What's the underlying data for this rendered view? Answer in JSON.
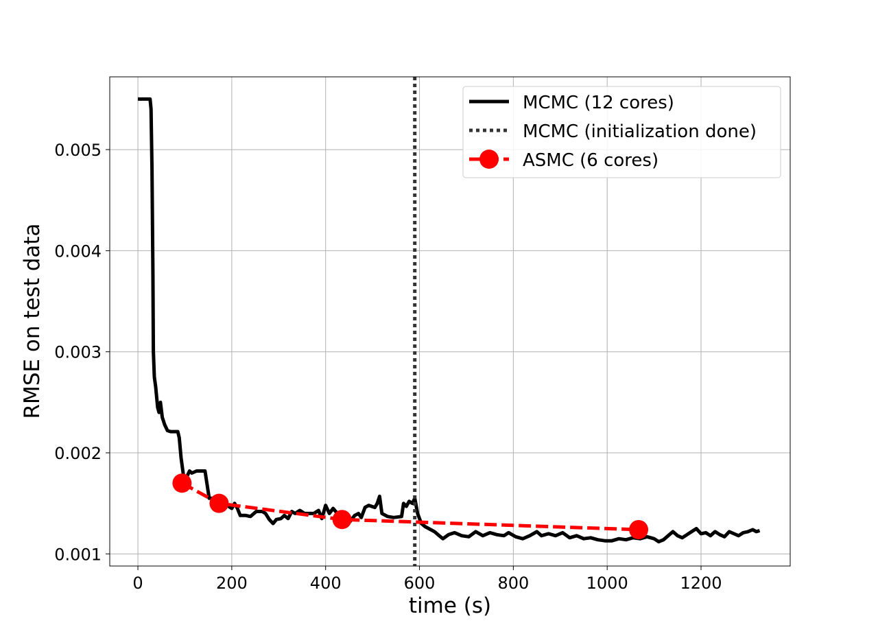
{
  "chart_data": {
    "type": "line",
    "title": "",
    "xlabel": "time (s)",
    "ylabel": "RMSE on test data",
    "xlim": [
      -60,
      1390
    ],
    "ylim": [
      0.00088,
      0.00572
    ],
    "xticks": [
      0,
      200,
      400,
      600,
      800,
      1000,
      1200
    ],
    "xtick_labels": [
      "0",
      "200",
      "400",
      "600",
      "800",
      "1000",
      "1200"
    ],
    "yticks": [
      0.001,
      0.002,
      0.003,
      0.004,
      0.005
    ],
    "ytick_labels": [
      "0.001",
      "0.002",
      "0.003",
      "0.004",
      "0.005"
    ],
    "grid": true,
    "legend_position": "top-right",
    "series": [
      {
        "name": "MCMC (12 cores)",
        "style": "solid",
        "color": "#000000",
        "points": [
          [
            0,
            0.0055
          ],
          [
            26,
            0.0055
          ],
          [
            28,
            0.0054
          ],
          [
            30,
            0.0048
          ],
          [
            32,
            0.0038
          ],
          [
            33,
            0.003
          ],
          [
            35,
            0.00275
          ],
          [
            38,
            0.00265
          ],
          [
            42,
            0.00245
          ],
          [
            45,
            0.0024
          ],
          [
            48,
            0.0025
          ],
          [
            52,
            0.00235
          ],
          [
            57,
            0.00228
          ],
          [
            63,
            0.00222
          ],
          [
            70,
            0.00221
          ],
          [
            85,
            0.00221
          ],
          [
            88,
            0.00215
          ],
          [
            92,
            0.00195
          ],
          [
            97,
            0.00178
          ],
          [
            103,
            0.00175
          ],
          [
            110,
            0.00182
          ],
          [
            115,
            0.0018
          ],
          [
            125,
            0.00182
          ],
          [
            143,
            0.00182
          ],
          [
            147,
            0.0017
          ],
          [
            152,
            0.00155
          ],
          [
            160,
            0.00155
          ],
          [
            170,
            0.00152
          ],
          [
            180,
            0.0015
          ],
          [
            190,
            0.00148
          ],
          [
            200,
            0.00145
          ],
          [
            206,
            0.0015
          ],
          [
            212,
            0.00145
          ],
          [
            218,
            0.00138
          ],
          [
            230,
            0.00138
          ],
          [
            240,
            0.00137
          ],
          [
            252,
            0.00142
          ],
          [
            265,
            0.00142
          ],
          [
            272,
            0.0014
          ],
          [
            280,
            0.00134
          ],
          [
            288,
            0.0013
          ],
          [
            295,
            0.00134
          ],
          [
            305,
            0.00135
          ],
          [
            312,
            0.00138
          ],
          [
            320,
            0.00135
          ],
          [
            328,
            0.00142
          ],
          [
            335,
            0.0014
          ],
          [
            345,
            0.00143
          ],
          [
            355,
            0.0014
          ],
          [
            375,
            0.0014
          ],
          [
            385,
            0.00143
          ],
          [
            392,
            0.00135
          ],
          [
            400,
            0.00148
          ],
          [
            408,
            0.0014
          ],
          [
            416,
            0.00145
          ],
          [
            425,
            0.0014
          ],
          [
            432,
            0.00136
          ],
          [
            440,
            0.00133
          ],
          [
            452,
            0.00132
          ],
          [
            462,
            0.00138
          ],
          [
            470,
            0.0014
          ],
          [
            476,
            0.00136
          ],
          [
            484,
            0.00146
          ],
          [
            492,
            0.00148
          ],
          [
            505,
            0.00146
          ],
          [
            510,
            0.0015
          ],
          [
            515,
            0.00157
          ],
          [
            520,
            0.0014
          ],
          [
            532,
            0.00137
          ],
          [
            545,
            0.00136
          ],
          [
            562,
            0.00137
          ],
          [
            566,
            0.0015
          ],
          [
            572,
            0.00147
          ],
          [
            578,
            0.00152
          ],
          [
            585,
            0.0015
          ],
          [
            590,
            0.00155
          ],
          [
            596,
            0.0014
          ],
          [
            604,
            0.0013
          ],
          [
            612,
            0.00127
          ],
          [
            620,
            0.00125
          ],
          [
            632,
            0.00122
          ],
          [
            642,
            0.00118
          ],
          [
            650,
            0.00115
          ],
          [
            662,
            0.00119
          ],
          [
            675,
            0.00121
          ],
          [
            690,
            0.00118
          ],
          [
            705,
            0.00117
          ],
          [
            720,
            0.00122
          ],
          [
            735,
            0.00118
          ],
          [
            750,
            0.00121
          ],
          [
            765,
            0.00119
          ],
          [
            780,
            0.00118
          ],
          [
            790,
            0.00121
          ],
          [
            805,
            0.00117
          ],
          [
            820,
            0.00115
          ],
          [
            835,
            0.00118
          ],
          [
            850,
            0.00122
          ],
          [
            860,
            0.00118
          ],
          [
            875,
            0.0012
          ],
          [
            890,
            0.00118
          ],
          [
            905,
            0.00121
          ],
          [
            920,
            0.00116
          ],
          [
            935,
            0.00118
          ],
          [
            950,
            0.00115
          ],
          [
            965,
            0.00116
          ],
          [
            980,
            0.00114
          ],
          [
            995,
            0.00113
          ],
          [
            1010,
            0.00113
          ],
          [
            1025,
            0.00115
          ],
          [
            1040,
            0.00114
          ],
          [
            1055,
            0.00116
          ],
          [
            1070,
            0.00115
          ],
          [
            1085,
            0.00117
          ],
          [
            1100,
            0.00115
          ],
          [
            1110,
            0.00112
          ],
          [
            1120,
            0.00114
          ],
          [
            1130,
            0.00118
          ],
          [
            1140,
            0.00122
          ],
          [
            1150,
            0.00118
          ],
          [
            1160,
            0.00116
          ],
          [
            1170,
            0.00119
          ],
          [
            1180,
            0.00122
          ],
          [
            1190,
            0.00125
          ],
          [
            1200,
            0.0012
          ],
          [
            1210,
            0.00121
          ],
          [
            1220,
            0.00118
          ],
          [
            1230,
            0.00122
          ],
          [
            1240,
            0.00119
          ],
          [
            1250,
            0.00117
          ],
          [
            1260,
            0.00122
          ],
          [
            1270,
            0.0012
          ],
          [
            1280,
            0.00118
          ],
          [
            1290,
            0.00121
          ],
          [
            1300,
            0.00122
          ],
          [
            1310,
            0.00124
          ],
          [
            1318,
            0.00122
          ],
          [
            1325,
            0.00123
          ]
        ]
      },
      {
        "name": "MCMC (initialization done)",
        "style": "dotted",
        "color": "#333333",
        "vertical_x": 590
      },
      {
        "name": "ASMC (6 cores)",
        "style": "dashed",
        "color": "#ff0000",
        "marker": "circle",
        "points": [
          [
            94,
            0.0017
          ],
          [
            173,
            0.0015
          ],
          [
            435,
            0.00134
          ],
          [
            1067,
            0.00124
          ]
        ]
      }
    ]
  }
}
